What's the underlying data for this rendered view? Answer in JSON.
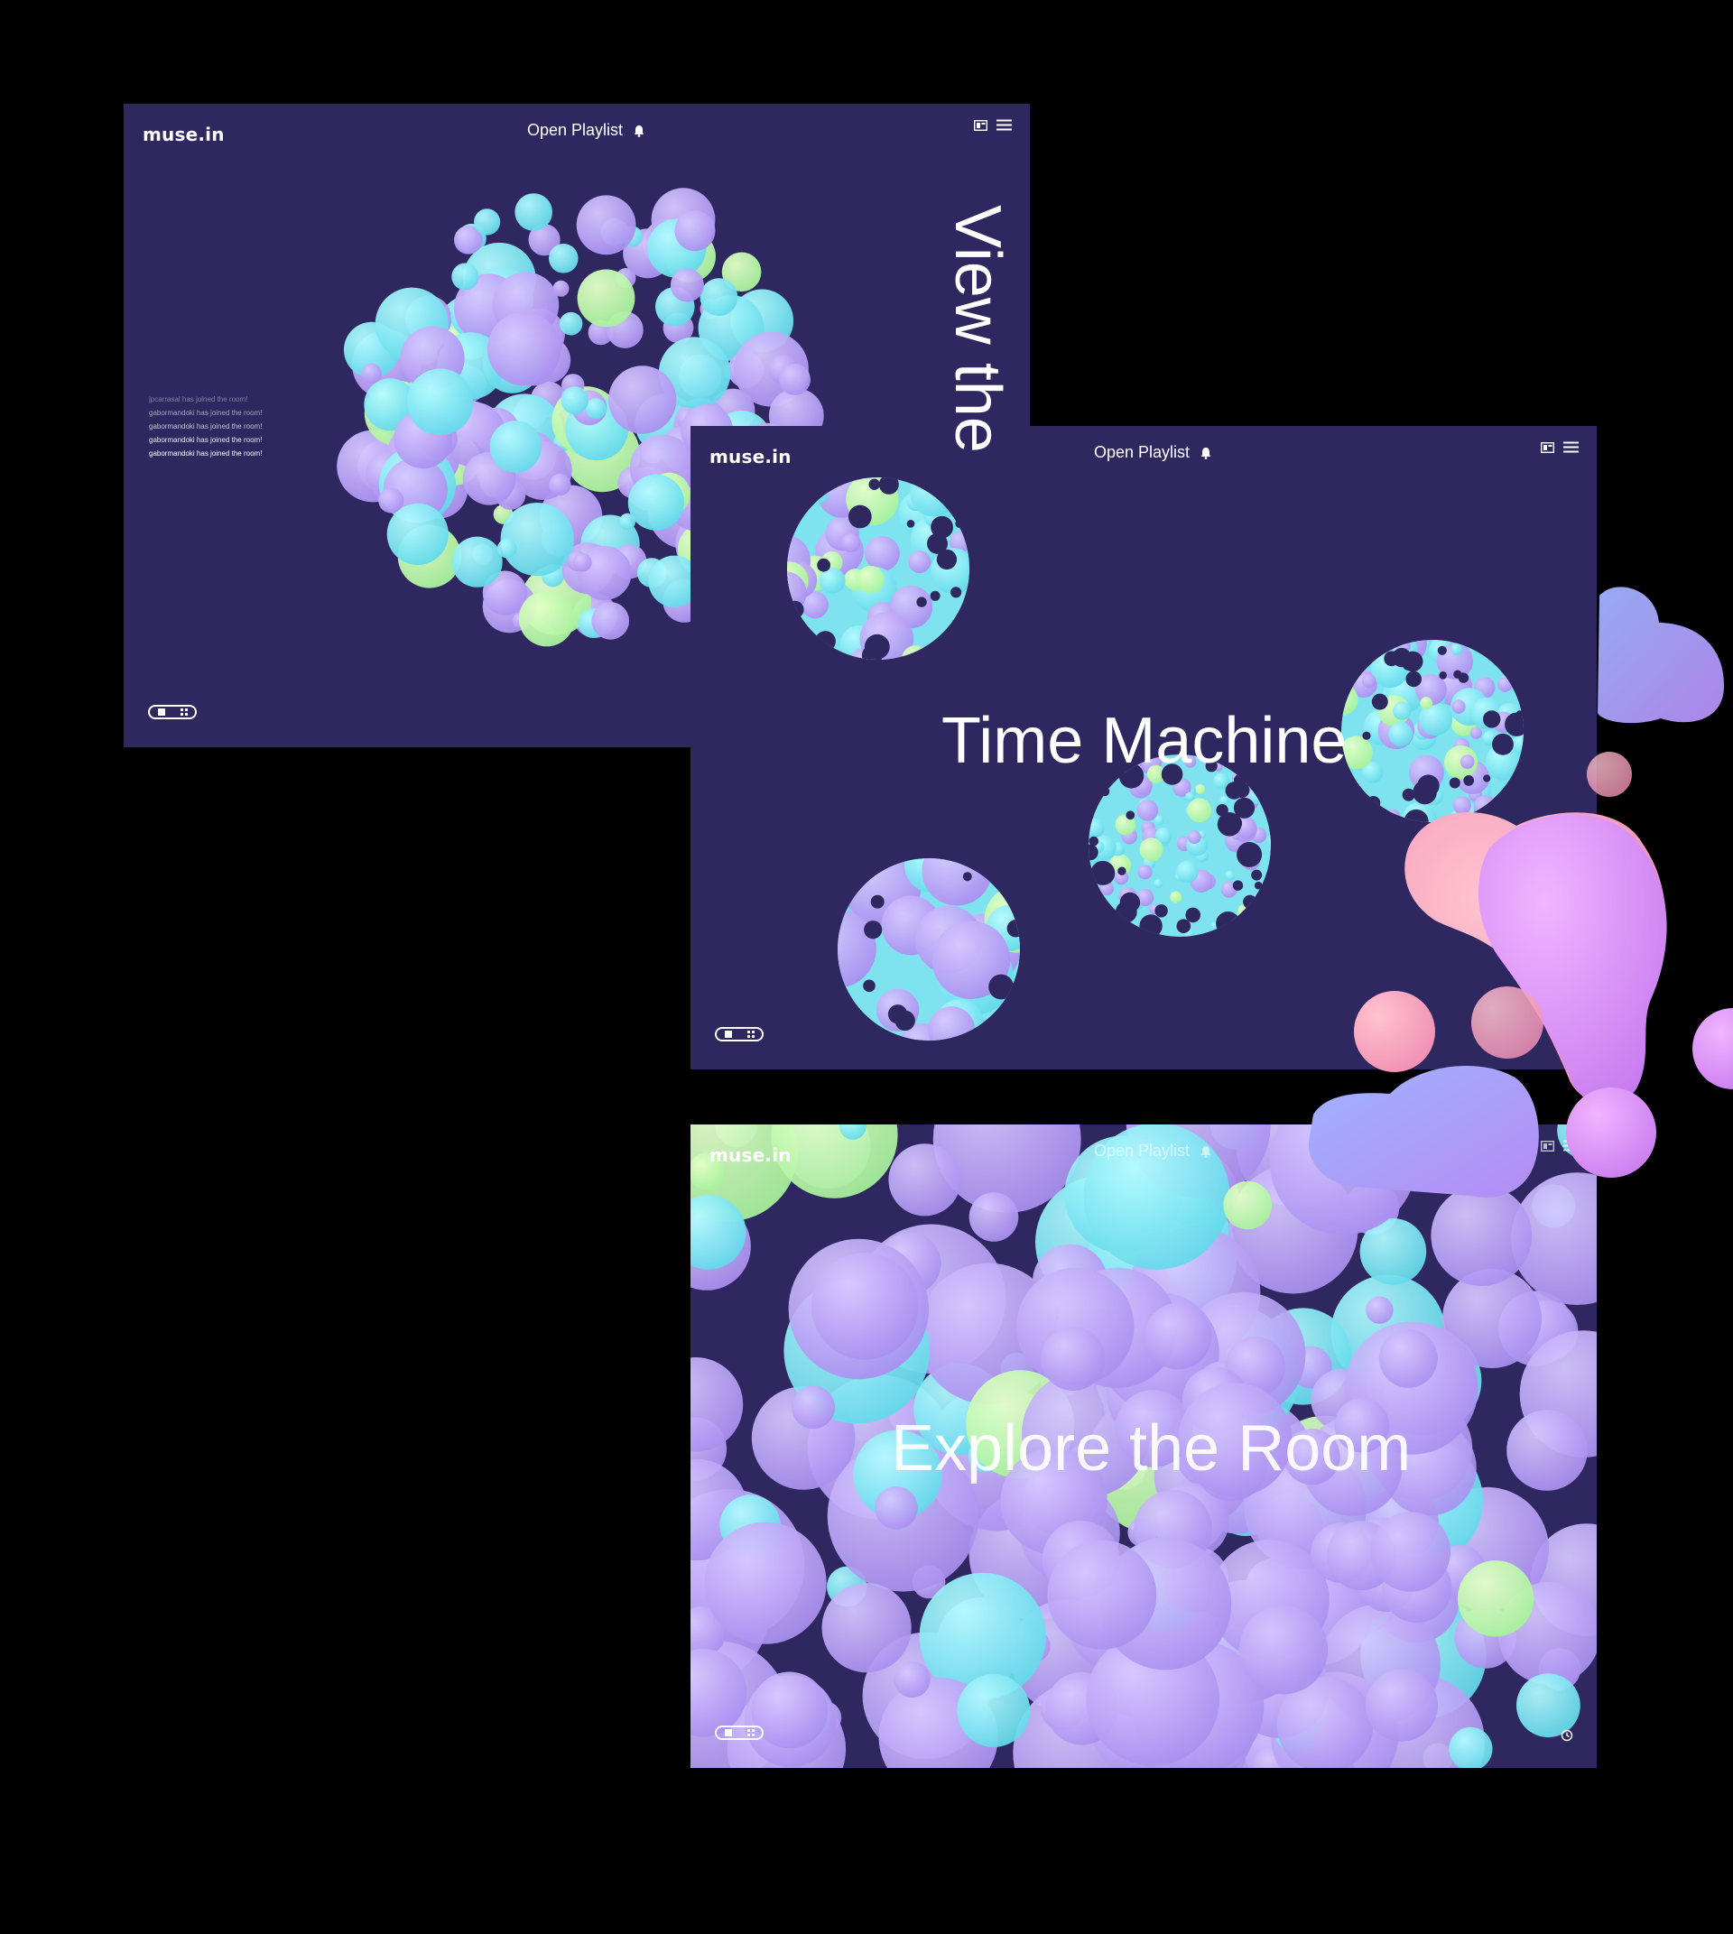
{
  "app": {
    "logo": "muse.in"
  },
  "screens": [
    {
      "header": {
        "playlist_label": "Open Playlist"
      },
      "vertical_title": "View the",
      "feed": [
        "jpcarrasal has joined the room!",
        "gabormandoki has joined the room!",
        "gabormandoki has joined the room!",
        "gabormandoki has joined the room!",
        "gabormandoki has joined the room!"
      ]
    },
    {
      "header": {
        "playlist_label": "Open Playlist"
      },
      "headline": "Time Machine"
    },
    {
      "header": {
        "playlist_label": "Open Playlist"
      },
      "headline": "Explore the Room"
    }
  ],
  "icons": {
    "playlist": "bell-icon",
    "view": "image-icon",
    "menu": "menu-icon",
    "history": "history-icon",
    "toggle_single": "square-icon",
    "toggle_grid": "grid-icon"
  },
  "colors": {
    "page_background": "#000000",
    "screen_background": "#2e2760",
    "bubble_lilac": "#b9a2f5",
    "bubble_cyan": "#80ecf2",
    "bubble_lime": "#b8f7a8",
    "blob_pink": "#f4a8c0",
    "blob_magenta": "#e391f5"
  }
}
